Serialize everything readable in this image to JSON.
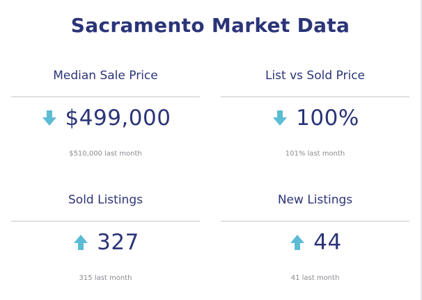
{
  "title": "Sacramento Market Data",
  "colors": {
    "accent_arrow": "#5bbcd4",
    "text_primary": "#2b3478",
    "text_muted": "#8a8a92",
    "divider": "#c6c6cc"
  },
  "cards": [
    {
      "label": "Median Sale Price",
      "direction_icon": "arrow-down-icon",
      "value": "$499,000",
      "comparison": "$510,000 last month"
    },
    {
      "label": "List vs Sold Price",
      "direction_icon": "arrow-down-icon",
      "value": "100%",
      "comparison": "101% last month"
    },
    {
      "label": "Sold Listings",
      "direction_icon": "arrow-up-icon",
      "value": "327",
      "comparison": "315 last month"
    },
    {
      "label": "New Listings",
      "direction_icon": "arrow-up-icon",
      "value": "44",
      "comparison": "41 last month"
    }
  ]
}
